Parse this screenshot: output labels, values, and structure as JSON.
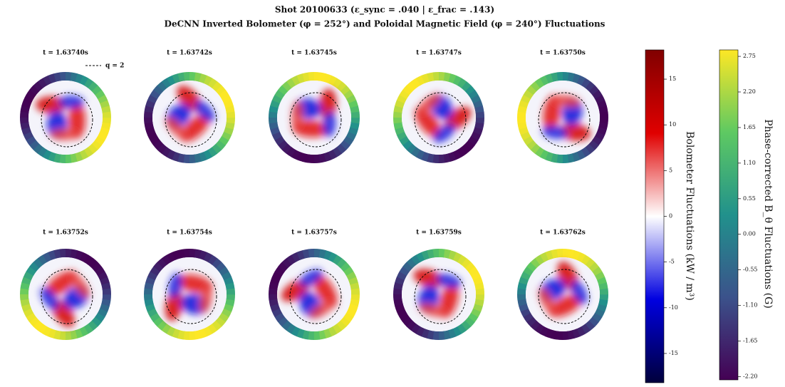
{
  "chart_data": {
    "type": "heatmap",
    "title": "Shot 20100633 (ε_sync = .040 | ε_frac = .143)",
    "subtitle": "DeCNN Inverted Bolometer (φ = 252°) and Poloidal Magnetic Field (φ = 240°) Fluctuations",
    "legend": "q = 2",
    "panels": [
      "t = 1.63740s",
      "t = 1.63742s",
      "t = 1.63745s",
      "t = 1.63747s",
      "t = 1.63750s",
      "t = 1.63752s",
      "t = 1.63754s",
      "t = 1.63757s",
      "t = 1.63759s",
      "t = 1.63762s"
    ],
    "colorbars": [
      {
        "label": "Bolometer Fluctuations (kW / m³)",
        "lim": [
          -18.2,
          18.2
        ],
        "ticks": [
          15,
          10,
          5,
          0,
          -5,
          -10,
          -15
        ]
      },
      {
        "label": "Phase-corrected B_θ Fluctuations (G)",
        "lim": [
          -2.25,
          2.85
        ],
        "ticks": [
          {
            "value": 2.75,
            "label": "2.75"
          },
          {
            "value": 2.2,
            "label": "2.20"
          },
          {
            "value": 1.65,
            "label": "1.65"
          },
          {
            "value": 1.1,
            "label": "1.10"
          },
          {
            "value": 0.55,
            "label": "0.55"
          },
          {
            "value": 0,
            "label": "0.00"
          },
          {
            "value": -0.55,
            "label": "-0.55"
          },
          {
            "value": -1.1,
            "label": "-1.10"
          },
          {
            "value": -1.65,
            "label": "-1.65"
          },
          {
            "value": -2.2,
            "label": "-2.20"
          }
        ]
      }
    ]
  }
}
